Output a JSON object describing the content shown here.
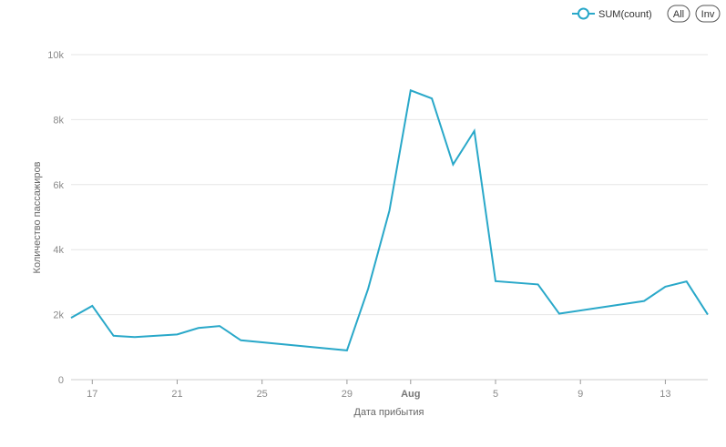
{
  "chart_data": {
    "type": "line",
    "title": "",
    "xlabel": "Дата прибытия",
    "ylabel": "Количество пассажиров",
    "ylim": [
      0,
      10000
    ],
    "x_domain": [
      "2015-07-16",
      "2015-08-15"
    ],
    "y_ticks": [
      0,
      2000,
      4000,
      6000,
      8000,
      10000
    ],
    "y_tick_labels": [
      "0",
      "2k",
      "4k",
      "6k",
      "8k",
      "10k"
    ],
    "x_ticks": [
      "2015-07-17",
      "2015-07-21",
      "2015-07-25",
      "2015-07-29",
      "2015-08-01",
      "2015-08-05",
      "2015-08-09",
      "2015-08-13"
    ],
    "x_tick_labels": [
      "17",
      "21",
      "25",
      "29",
      "Aug",
      "5",
      "9",
      "13"
    ],
    "x_tick_bold": [
      false,
      false,
      false,
      false,
      true,
      false,
      false,
      false
    ],
    "grid": true,
    "legend_position": "top-right",
    "series": [
      {
        "name": "SUM(count)",
        "color": "#29a8c9",
        "points": [
          {
            "x": "2015-07-16",
            "y": 1900
          },
          {
            "x": "2015-07-17",
            "y": 2270
          },
          {
            "x": "2015-07-18",
            "y": 1350
          },
          {
            "x": "2015-07-19",
            "y": 1310
          },
          {
            "x": "2015-07-21",
            "y": 1390
          },
          {
            "x": "2015-07-22",
            "y": 1590
          },
          {
            "x": "2015-07-23",
            "y": 1650
          },
          {
            "x": "2015-07-24",
            "y": 1210
          },
          {
            "x": "2015-07-29",
            "y": 900
          },
          {
            "x": "2015-07-30",
            "y": 2800
          },
          {
            "x": "2015-07-31",
            "y": 5200
          },
          {
            "x": "2015-08-01",
            "y": 8900
          },
          {
            "x": "2015-08-02",
            "y": 8650
          },
          {
            "x": "2015-08-03",
            "y": 6620
          },
          {
            "x": "2015-08-04",
            "y": 7650
          },
          {
            "x": "2015-08-05",
            "y": 3030
          },
          {
            "x": "2015-08-07",
            "y": 2930
          },
          {
            "x": "2015-08-08",
            "y": 2030
          },
          {
            "x": "2015-08-12",
            "y": 2420
          },
          {
            "x": "2015-08-13",
            "y": 2860
          },
          {
            "x": "2015-08-14",
            "y": 3020
          },
          {
            "x": "2015-08-15",
            "y": 2000
          }
        ]
      }
    ]
  },
  "legend": {
    "series_label": "SUM(count)",
    "all_label": "All",
    "inv_label": "Inv"
  },
  "colors": {
    "line": "#29a8c9",
    "grid": "#e6e6e6",
    "axis_text": "#8a8a8a",
    "label_text": "#666666"
  }
}
